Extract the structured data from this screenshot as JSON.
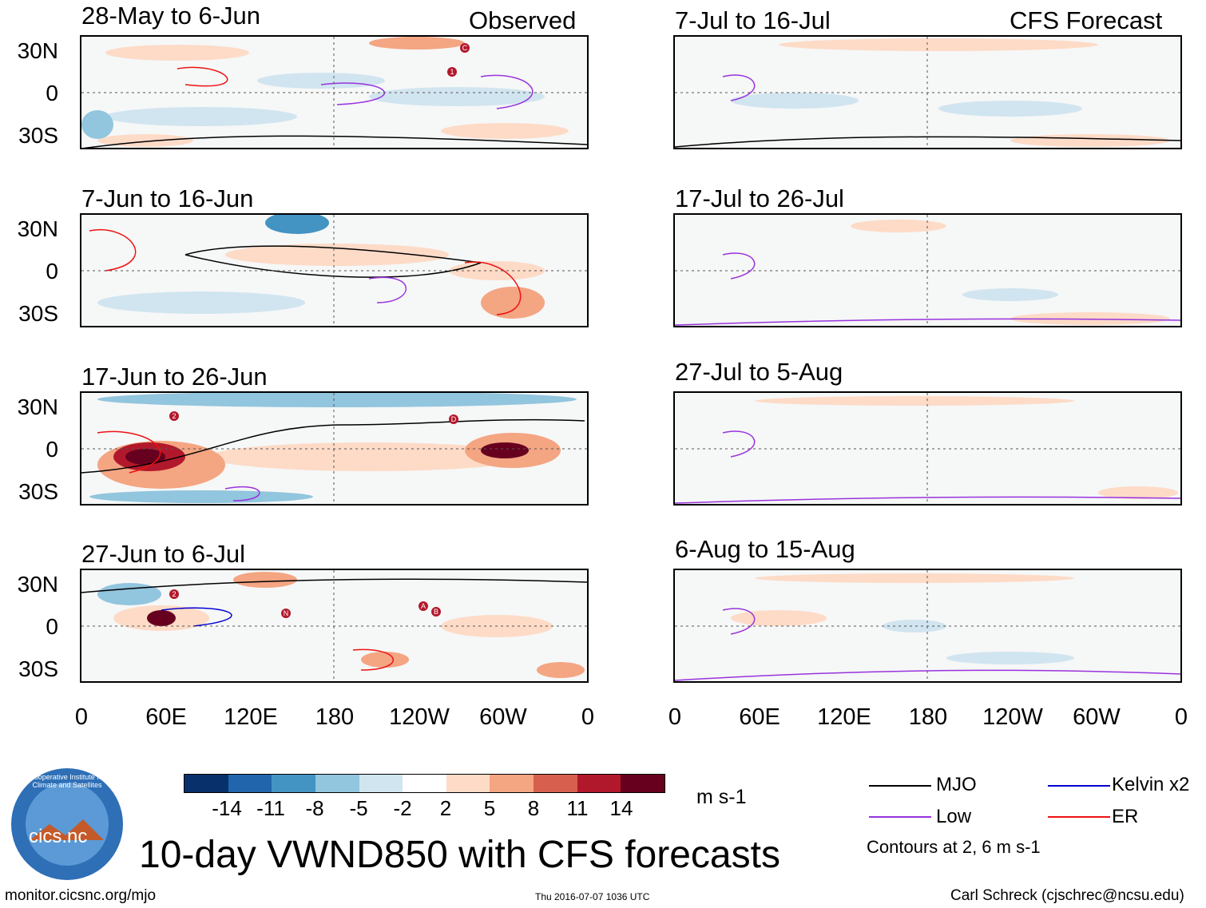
{
  "header": {
    "observed_label": "Observed",
    "forecast_label": "CFS Forecast"
  },
  "observed_panels": [
    {
      "title": "28-May to 6-Jun"
    },
    {
      "title": "7-Jun to 16-Jun"
    },
    {
      "title": "17-Jun to 26-Jun"
    },
    {
      "title": "27-Jun to 6-Jul"
    }
  ],
  "forecast_panels": [
    {
      "title": "7-Jul to 16-Jul"
    },
    {
      "title": "17-Jul to 26-Jul"
    },
    {
      "title": "27-Jul to 5-Aug"
    },
    {
      "title": "6-Aug to 15-Aug"
    }
  ],
  "lat_labels": [
    "30N",
    "0",
    "30S"
  ],
  "lon_labels": [
    "0",
    "60E",
    "120E",
    "180",
    "120W",
    "60W",
    "0"
  ],
  "colorbar": {
    "colors": [
      "#08306b",
      "#2166ac",
      "#4393c3",
      "#92c5de",
      "#d1e5f0",
      "#ffffff",
      "#fddbc7",
      "#f4a582",
      "#d6604d",
      "#b2182b",
      "#67001f"
    ],
    "tick_labels": [
      "-14",
      "-11",
      "-8",
      "-5",
      "-2",
      "2",
      "5",
      "8",
      "11",
      "14"
    ],
    "units": "m s-1"
  },
  "legend": {
    "items": [
      {
        "label": "MJO",
        "color": "#000000"
      },
      {
        "label": "Kelvin x2",
        "color": "#0000cc"
      },
      {
        "label": "Low",
        "color": "#9933dd"
      },
      {
        "label": "ER",
        "color": "#ee1111"
      }
    ],
    "note": "Contours at 2, 6 m s-1"
  },
  "storm_markers": [
    "1",
    "C",
    "2",
    "D",
    "2",
    "N",
    "A",
    "B"
  ],
  "logo": {
    "text": "cics.nc",
    "ring_text": "Cooperative Institute for Climate and Satellites"
  },
  "main_title": "10-day VWND850 with CFS forecasts",
  "footer": {
    "url": "monitor.cicsnc.org/mjo",
    "timestamp": "Thu 2016-07-07 1036 UTC",
    "author": "Carl Schreck (cjschrec@ncsu.edu)"
  }
}
